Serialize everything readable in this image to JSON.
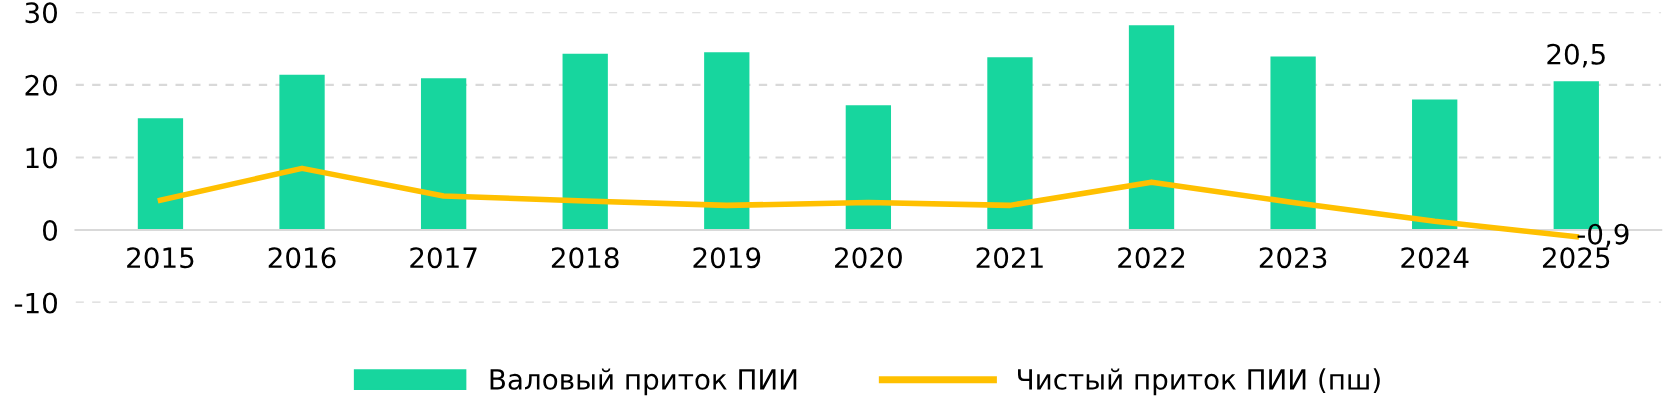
{
  "chart_data": {
    "type": "bar",
    "categories": [
      "2015",
      "2016",
      "2017",
      "2018",
      "2019",
      "2020",
      "2021",
      "2022",
      "2023",
      "2024",
      "2025"
    ],
    "series": [
      {
        "name": "Валовый приток ПИИ",
        "color": "#17d69e",
        "values": [
          15.4,
          21.4,
          20.9,
          24.3,
          24.5,
          17.2,
          23.8,
          28.2,
          23.9,
          18.0,
          20.5
        ],
        "value_labels": [
          null,
          null,
          null,
          null,
          null,
          null,
          null,
          null,
          null,
          null,
          "20,5"
        ]
      },
      {
        "name": "Чистый приток ПИИ (пш)",
        "type": "line",
        "color": "#ffc000",
        "values": [
          4.1,
          8.5,
          4.7,
          4.0,
          3.4,
          3.8,
          3.4,
          6.6,
          3.8,
          1.2,
          -0.9
        ],
        "value_labels": [
          null,
          null,
          null,
          null,
          null,
          null,
          null,
          null,
          null,
          null,
          "-0,9"
        ]
      }
    ],
    "ylim": [
      -10,
      30
    ],
    "yticks": [
      -10,
      0,
      10,
      20,
      30
    ],
    "grid": "y",
    "legend": "bottom",
    "marker": "none",
    "line_style": "solid"
  }
}
